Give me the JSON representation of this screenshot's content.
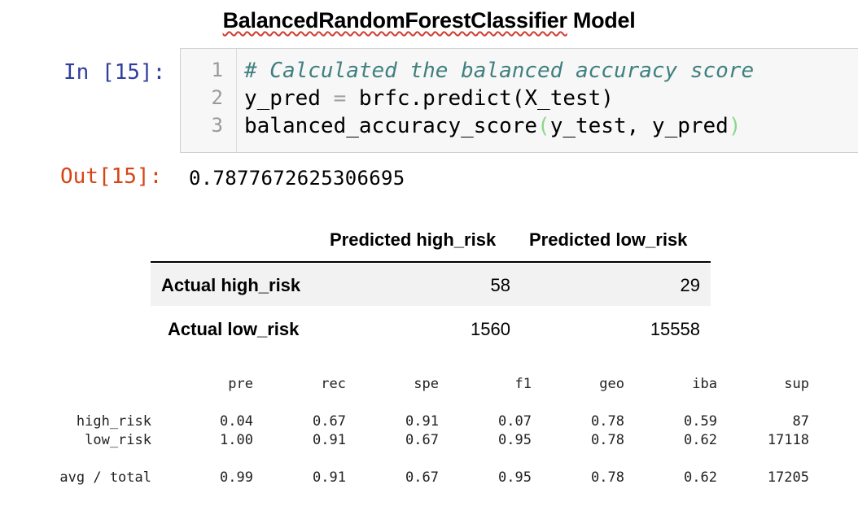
{
  "title_part1": "BalancedRandomForestClassifier",
  "title_part2": " Model",
  "input_prompt": "In [15]:",
  "code": {
    "line_numbers": [
      "1",
      "2",
      "3"
    ],
    "line1_comment": "# Calculated the balanced accuracy score",
    "line2_a": "y_pred ",
    "line2_eq": "=",
    "line2_b": " brfc.predict(X_test)",
    "line3_a": "balanced_accuracy_score",
    "line3_open": "(",
    "line3_b": "y_test, y_pred",
    "line3_close": ")"
  },
  "output_prompt": "Out[15]:",
  "output_value": "0.7877672625306695",
  "confusion_matrix": {
    "col_headers": [
      "Predicted high_risk",
      "Predicted low_risk"
    ],
    "rows": [
      {
        "label": "Actual high_risk",
        "values": [
          "58",
          "29"
        ]
      },
      {
        "label": "Actual low_risk",
        "values": [
          "1560",
          "15558"
        ]
      }
    ]
  },
  "report": {
    "headers": [
      "pre",
      "rec",
      "spe",
      "f1",
      "geo",
      "iba",
      "sup"
    ],
    "rows": [
      {
        "label": "high_risk",
        "values": [
          "0.04",
          "0.67",
          "0.91",
          "0.07",
          "0.78",
          "0.59",
          "87"
        ]
      },
      {
        "label": "low_risk",
        "values": [
          "1.00",
          "0.91",
          "0.67",
          "0.95",
          "0.78",
          "0.62",
          "17118"
        ]
      },
      {
        "label": "avg / total",
        "values": [
          "0.99",
          "0.91",
          "0.67",
          "0.95",
          "0.78",
          "0.62",
          "17205"
        ]
      }
    ]
  }
}
